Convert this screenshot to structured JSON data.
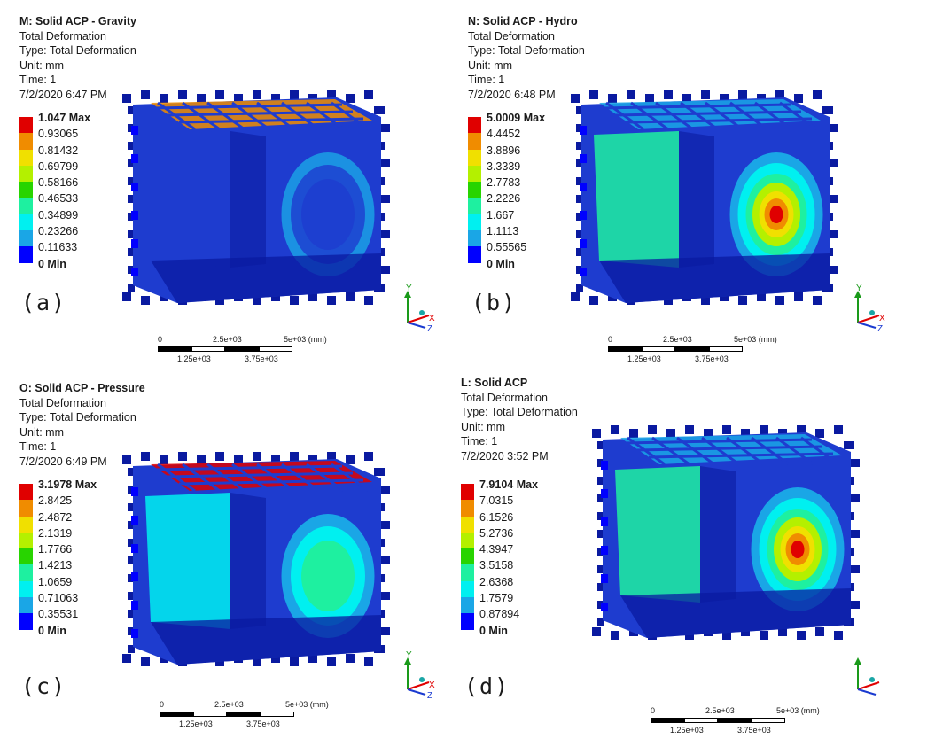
{
  "panels": [
    {
      "tag": "(a)",
      "title": "M: Solid ACP - Gravity",
      "lines": [
        "Total Deformation",
        "Type: Total Deformation",
        "Unit: mm",
        "Time: 1",
        "7/2/2020 6:47 PM"
      ],
      "legend": [
        "1.047 Max",
        "0.93065",
        "0.81432",
        "0.69799",
        "0.58166",
        "0.46533",
        "0.34899",
        "0.23266",
        "0.11633",
        "0 Min"
      ],
      "scale": {
        "t0": "0",
        "t1": "2.5e+03",
        "t2": "5e+03 (mm)",
        "b1": "1.25e+03",
        "b2": "3.75e+03"
      },
      "axis": {
        "y": "Y",
        "x": "X",
        "z": "Z"
      },
      "max_deformation_mm": 1.047
    },
    {
      "tag": "(b)",
      "title": "N: Solid ACP - Hydro",
      "lines": [
        "Total Deformation",
        "Type: Total Deformation",
        "Unit: mm",
        "Time: 1",
        "7/2/2020 6:48 PM"
      ],
      "legend": [
        "5.0009 Max",
        "4.4452",
        "3.8896",
        "3.3339",
        "2.7783",
        "2.2226",
        "1.667",
        "1.1113",
        "0.55565",
        "0 Min"
      ],
      "scale": {
        "t0": "0",
        "t1": "2.5e+03",
        "t2": "5e+03 (mm)",
        "b1": "1.25e+03",
        "b2": "3.75e+03"
      },
      "axis": {
        "y": "Y",
        "x": "X",
        "z": "Z"
      },
      "max_deformation_mm": 5.0009
    },
    {
      "tag": "(c)",
      "title": "O: Solid ACP - Pressure",
      "lines": [
        "Total Deformation",
        "Type: Total Deformation",
        "Unit: mm",
        "Time: 1",
        "7/2/2020 6:49 PM"
      ],
      "legend": [
        "3.1978 Max",
        "2.8425",
        "2.4872",
        "2.1319",
        "1.7766",
        "1.4213",
        "1.0659",
        "0.71063",
        "0.35531",
        "0 Min"
      ],
      "scale": {
        "t0": "0",
        "t1": "2.5e+03",
        "t2": "5e+03 (mm)",
        "b1": "1.25e+03",
        "b2": "3.75e+03"
      },
      "axis": {
        "y": "Y",
        "x": "X",
        "z": "Z"
      },
      "max_deformation_mm": 3.1978
    },
    {
      "tag": "(d)",
      "title": "L: Solid ACP",
      "lines": [
        "Total Deformation",
        "Type: Total Deformation",
        "Unit: mm",
        "Time: 1",
        "7/2/2020 3:52 PM"
      ],
      "legend": [
        "7.9104 Max",
        "7.0315",
        "6.1526",
        "5.2736",
        "4.3947",
        "3.5158",
        "2.6368",
        "1.7579",
        "0.87894",
        "0 Min"
      ],
      "scale": {
        "t0": "0",
        "t1": "2.5e+03",
        "t2": "5e+03 (mm)",
        "b1": "1.25e+03",
        "b2": "3.75e+03"
      },
      "axis": {
        "y": "",
        "x": "",
        "z": ""
      },
      "max_deformation_mm": 7.9104
    }
  ],
  "colors": {
    "legend": [
      "#e00000",
      "#f08c00",
      "#f0e000",
      "#b4f000",
      "#28d400",
      "#1ef0a0",
      "#00f0f0",
      "#1aa6e6",
      "#0000ff"
    ],
    "model_base": "#1e3ccf",
    "model_dark": "#0a1aa0",
    "axis_y": "#1a9a1a",
    "axis_x": "#e00000",
    "axis_z": "#1a3ad0",
    "axis_dot": "#1aa6a6"
  },
  "model_hotspots": [
    {
      "panel": "a",
      "location": "roof",
      "level": 0.6
    },
    {
      "panel": "b",
      "location": "right-end-face",
      "level": 1.0
    },
    {
      "panel": "c",
      "location": "roof",
      "level": 1.0
    },
    {
      "panel": "d",
      "location": "right-end-face",
      "level": 0.95
    }
  ]
}
